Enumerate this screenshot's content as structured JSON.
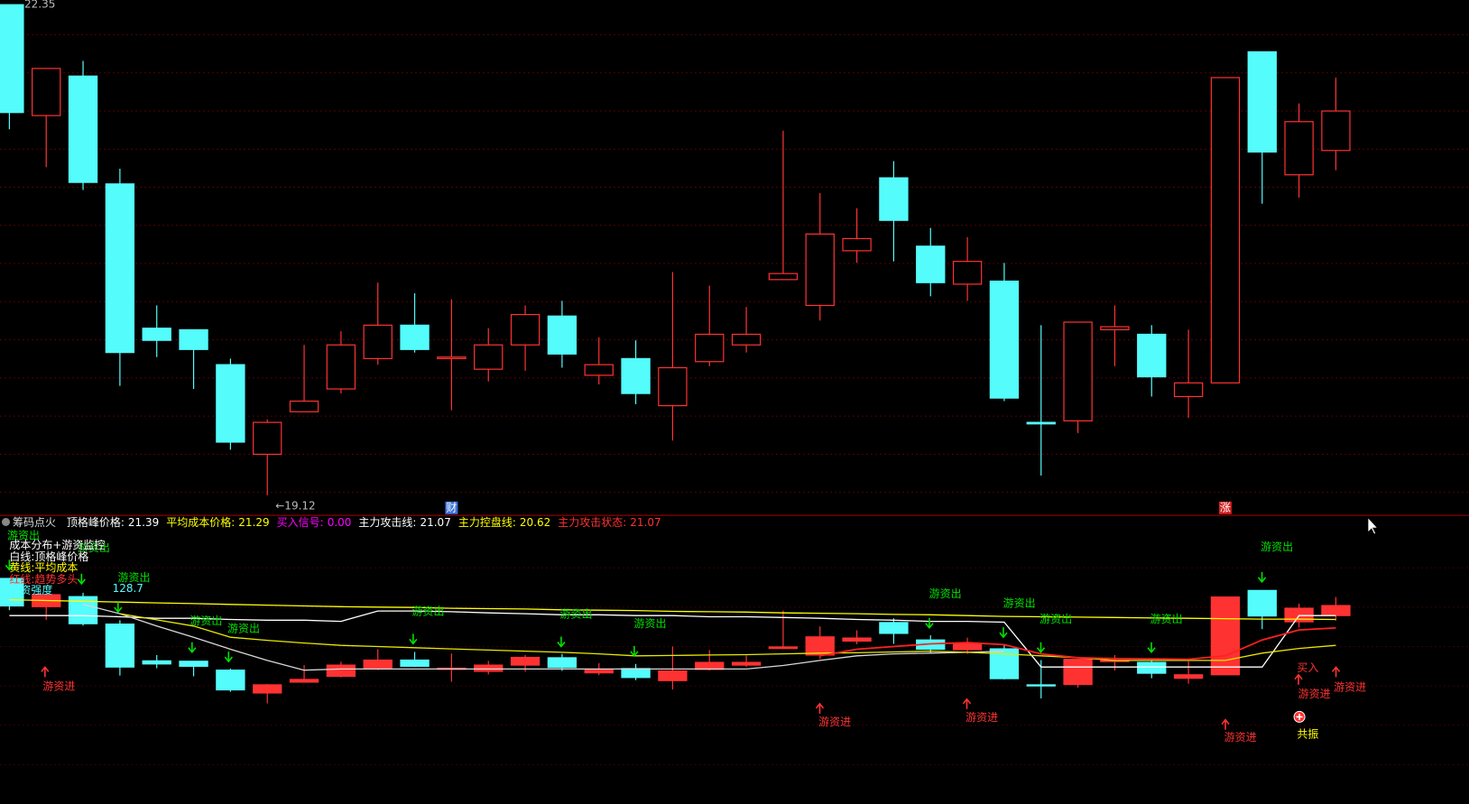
{
  "chart_data": [
    {
      "type": "candlestick",
      "max_marker": 22.35,
      "low_marker": {
        "value": 19.12,
        "label": "←19.12"
      },
      "event_markers": [
        {
          "text": "财",
          "index": 12,
          "color": "#3a6fd8"
        },
        {
          "text": "涨",
          "index": 33,
          "color": "#d02020"
        }
      ],
      "up_color": "#ff3232",
      "down_color": "#54fcfc",
      "open": [
        22.35,
        21.62,
        21.88,
        21.17,
        20.22,
        20.21,
        19.98,
        19.39,
        19.67,
        19.82,
        20.02,
        20.24,
        20.02,
        19.95,
        20.11,
        20.3,
        19.91,
        20.02,
        19.71,
        20.0,
        20.11,
        20.54,
        20.37,
        20.73,
        21.21,
        20.76,
        20.51,
        20.53,
        19.6,
        19.61,
        20.21,
        20.18,
        19.77,
        19.86,
        22.04,
        21.23,
        21.39
      ],
      "high": [
        22.35,
        21.93,
        21.98,
        21.27,
        20.37,
        20.21,
        20.02,
        19.62,
        20.11,
        20.2,
        20.52,
        20.45,
        20.41,
        20.22,
        20.37,
        20.4,
        20.16,
        20.14,
        20.59,
        20.5,
        20.36,
        21.52,
        21.11,
        21.01,
        21.32,
        20.88,
        20.82,
        20.65,
        20.24,
        20.26,
        20.37,
        20.24,
        20.21,
        21.87,
        22.04,
        21.7,
        21.87
      ],
      "low": [
        21.53,
        21.28,
        21.13,
        19.84,
        20.03,
        19.82,
        19.42,
        19.12,
        19.67,
        19.79,
        19.98,
        20.06,
        19.68,
        19.87,
        19.94,
        19.96,
        19.85,
        19.72,
        19.48,
        19.97,
        20.06,
        20.54,
        20.27,
        20.65,
        20.66,
        20.43,
        20.4,
        19.74,
        19.25,
        19.53,
        19.97,
        19.77,
        19.63,
        19.86,
        21.04,
        21.08,
        21.26
      ],
      "close": [
        21.64,
        21.93,
        21.18,
        20.06,
        20.14,
        20.08,
        19.47,
        19.6,
        19.74,
        20.11,
        20.24,
        20.08,
        20.03,
        20.11,
        20.31,
        20.05,
        19.98,
        19.79,
        19.96,
        20.18,
        20.18,
        20.58,
        20.84,
        20.81,
        20.93,
        20.52,
        20.66,
        19.76,
        19.59,
        20.26,
        20.23,
        19.9,
        19.86,
        21.87,
        21.38,
        21.58,
        21.65
      ],
      "ylim": [
        19.0,
        22.35
      ]
    },
    {
      "type": "indicator",
      "title": "筹码点火",
      "header": [
        {
          "label": "顶格峰价格:",
          "value": 21.39,
          "color": "#ffffff"
        },
        {
          "label": "平均成本价格:",
          "value": 21.29,
          "color": "#ffff00"
        },
        {
          "label": "买入信号:",
          "value": 0,
          "value_label": "0.00",
          "color": "#ff00ff"
        },
        {
          "label": "主力攻击线:",
          "value": 21.07,
          "color": "#ffffff"
        },
        {
          "label": "主力控盘线:",
          "value": 20.62,
          "color": "#ffff00"
        },
        {
          "label": "主力攻击状态:",
          "value": 21.07,
          "color": "#ff3232"
        }
      ],
      "legend_notes": [
        {
          "text": "成本分布+游资监控",
          "color": "#ffffff"
        },
        {
          "text": "白线:顶格峰价格",
          "color": "#ffffff"
        },
        {
          "text": "黄线:平均成本",
          "color": "#ffff00"
        },
        {
          "text": "红线:趋势多头",
          "color": "#ff3232"
        },
        {
          "text": "游资强度",
          "color": "#54fcfc"
        }
      ],
      "strength_value": 128.7,
      "ylim": [
        16.52,
        23.98
      ],
      "lines": [
        {
          "color": "#ffffff",
          "values": [
            21.39,
            21.39,
            21.39,
            21.36,
            21.32,
            21.32,
            21.29,
            21.27,
            21.27,
            21.24,
            21.51,
            21.51,
            21.49,
            21.46,
            21.44,
            21.41,
            21.41,
            21.39,
            21.39,
            21.36,
            21.36,
            21.34,
            21.32,
            21.29,
            21.27,
            21.24,
            21.24,
            21.22,
            20.06,
            20.06,
            20.06,
            20.06,
            20.06,
            20.06,
            20.06,
            21.39,
            21.39
          ]
        },
        {
          "color": "#d8d8d8",
          "values": [
            null,
            null,
            21.68,
            21.44,
            21.12,
            20.83,
            20.52,
            20.23,
            19.98,
            20.01,
            20.01,
            20.01,
            20.01,
            20.01,
            20.01,
            20.01,
            20.01,
            20.01,
            20.01,
            20.01,
            20.01,
            20.1,
            20.23,
            20.35,
            20.4,
            20.42,
            20.44,
            20.47,
            null,
            null,
            null,
            null,
            null,
            null,
            null,
            null,
            null
          ]
        },
        {
          "color": "#ffff00",
          "values": [
            21.8,
            21.78,
            21.76,
            21.74,
            21.72,
            21.7,
            21.68,
            21.66,
            21.64,
            21.62,
            21.61,
            21.6,
            21.58,
            21.57,
            21.56,
            21.54,
            21.53,
            21.52,
            21.5,
            21.49,
            21.48,
            21.46,
            21.45,
            21.44,
            21.42,
            21.41,
            21.39,
            21.37,
            21.36,
            21.35,
            21.34,
            21.33,
            21.32,
            21.31,
            21.3,
            21.3,
            21.29
          ]
        },
        {
          "color": "#e8e800",
          "values": [
            null,
            null,
            null,
            21.44,
            21.28,
            21.12,
            20.83,
            20.75,
            20.68,
            20.62,
            20.59,
            20.56,
            20.53,
            20.5,
            20.47,
            20.44,
            20.4,
            20.35,
            20.36,
            20.37,
            20.38,
            20.4,
            20.42,
            20.43,
            20.45,
            20.47,
            20.44,
            20.4,
            20.35,
            20.3,
            20.23,
            20.23,
            20.23,
            20.23,
            20.42,
            20.54,
            20.62
          ]
        },
        {
          "color": "#ff2020",
          "values": [
            null,
            null,
            null,
            null,
            null,
            null,
            null,
            null,
            null,
            null,
            null,
            null,
            null,
            null,
            null,
            null,
            null,
            null,
            null,
            null,
            null,
            null,
            20.35,
            20.52,
            20.59,
            20.66,
            20.69,
            20.64,
            20.4,
            20.3,
            20.28,
            20.27,
            20.26,
            20.35,
            20.76,
            21.02,
            21.07
          ]
        }
      ],
      "annotations": [
        {
          "text": "游资出",
          "color": "#00e000"
        },
        {
          "text": "游资出",
          "color": "#00e000"
        },
        {
          "text": "游资出",
          "color": "#00e000"
        },
        {
          "text": "游资出",
          "color": "#00e000"
        },
        {
          "text": "游资出",
          "color": "#00e000"
        },
        {
          "text": "游资出",
          "color": "#00e000"
        },
        {
          "text": "游资出",
          "color": "#00e000"
        },
        {
          "text": "游资出",
          "color": "#00e000"
        },
        {
          "text": "游资出",
          "color": "#00e000"
        },
        {
          "text": "游资出",
          "color": "#00e000"
        },
        {
          "text": "游资出",
          "color": "#00e000"
        },
        {
          "text": "游资出",
          "color": "#00e000"
        },
        {
          "text": "游资出",
          "color": "#00e000"
        },
        {
          "text": "游资进",
          "color": "#ff3232"
        },
        {
          "text": "游资进",
          "color": "#ff3232"
        },
        {
          "text": "游资进",
          "color": "#ff3232"
        },
        {
          "text": "游资进",
          "color": "#ff3232"
        },
        {
          "text": "买入",
          "color": "#ff3232"
        },
        {
          "text": "游资进",
          "color": "#ff3232"
        },
        {
          "text": "游资进",
          "color": "#ff3232"
        },
        {
          "text": "共振",
          "color": "#ffff00"
        }
      ]
    }
  ]
}
